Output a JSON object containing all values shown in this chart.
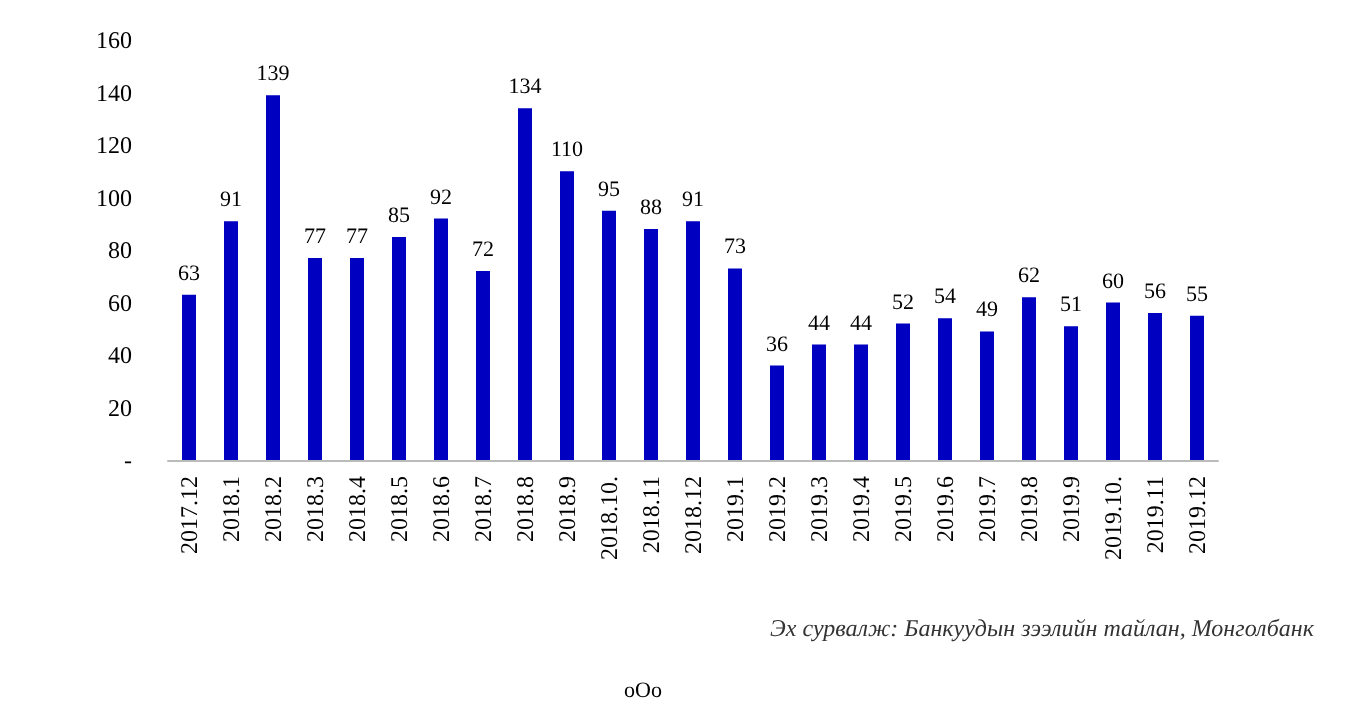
{
  "chart_data": {
    "type": "bar",
    "categories": [
      "2017.12",
      "2018.1",
      "2018.2",
      "2018.3",
      "2018.4",
      "2018.5",
      "2018.6",
      "2018.7",
      "2018.8",
      "2018.9",
      "2018.10.",
      "2018.11",
      "2018.12",
      "2019.1",
      "2019.2",
      "2019.3",
      "2019.4",
      "2019.5",
      "2019.6",
      "2019.7",
      "2019.8",
      "2019.9",
      "2019.10.",
      "2019.11",
      "2019.12"
    ],
    "values": [
      63,
      91,
      139,
      77,
      77,
      85,
      92,
      72,
      134,
      110,
      95,
      88,
      91,
      73,
      36,
      44,
      44,
      52,
      54,
      49,
      62,
      51,
      60,
      56,
      55
    ],
    "color": "#0000c0",
    "ylim": [
      0,
      160
    ],
    "yticks": [
      {
        "value": 0,
        "label": "-"
      },
      20,
      40,
      60,
      80,
      100,
      120,
      140,
      160
    ],
    "data_labels": true,
    "grid": false,
    "annotations": [
      "Эх сурвалж: Банкуудын зээлийн тайлан, Монголбанк",
      "oOo"
    ]
  }
}
